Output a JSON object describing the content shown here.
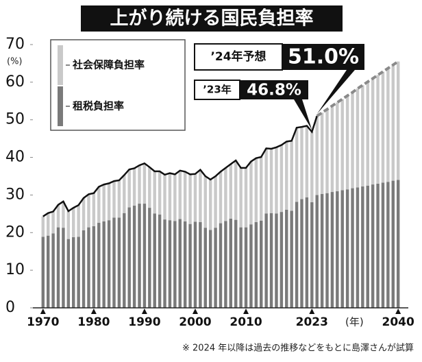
{
  "chart_data": {
    "type": "stacked_bar",
    "title": "上がり続ける国民負担率",
    "ylabel": "(%)",
    "xlabel": "(年)",
    "footnote": "※ 2024 年以降は過去の推移などをもとに島澤さんが試算",
    "x": [
      1970,
      1971,
      1972,
      1973,
      1974,
      1975,
      1976,
      1977,
      1978,
      1979,
      1980,
      1981,
      1982,
      1983,
      1984,
      1985,
      1986,
      1987,
      1988,
      1989,
      1990,
      1991,
      1992,
      1993,
      1994,
      1995,
      1996,
      1997,
      1998,
      1999,
      2000,
      2001,
      2002,
      2003,
      2004,
      2005,
      2006,
      2007,
      2008,
      2009,
      2010,
      2011,
      2012,
      2013,
      2014,
      2015,
      2016,
      2017,
      2018,
      2019,
      2020,
      2021,
      2022,
      2023,
      2024,
      2025,
      2026,
      2027,
      2028,
      2029,
      2030,
      2031,
      2032,
      2033,
      2034,
      2035,
      2036,
      2037,
      2038,
      2039,
      2040
    ],
    "series": [
      {
        "name": "租税負担率",
        "color": "#7a7a7a",
        "values": [
          18.9,
          19.2,
          19.8,
          21.4,
          21.3,
          18.3,
          18.8,
          18.9,
          20.6,
          21.4,
          21.7,
          22.6,
          23.0,
          23.3,
          24.0,
          24.0,
          25.2,
          26.7,
          27.2,
          27.7,
          27.7,
          26.6,
          25.1,
          24.8,
          23.5,
          23.3,
          23.1,
          23.6,
          23.0,
          22.3,
          22.9,
          22.8,
          21.3,
          20.7,
          21.3,
          22.5,
          23.1,
          23.7,
          23.4,
          21.4,
          21.4,
          22.2,
          22.8,
          23.2,
          25.1,
          25.2,
          25.1,
          25.5,
          26.1,
          25.8,
          28.2,
          28.9,
          29.4,
          28.1,
          30.0,
          30.3,
          30.5,
          30.8,
          31.0,
          31.3,
          31.5,
          31.8,
          32.0,
          32.3,
          32.5,
          32.8,
          33.0,
          33.3,
          33.5,
          33.8,
          34.0
        ]
      },
      {
        "name": "社会保障負担率",
        "color": "#c9c9c9",
        "values": [
          5.4,
          6.0,
          5.8,
          6.0,
          7.0,
          7.4,
          7.8,
          8.4,
          8.6,
          8.8,
          8.8,
          9.6,
          9.8,
          9.8,
          9.7,
          9.9,
          10.1,
          10.1,
          9.9,
          10.2,
          10.7,
          10.8,
          11.2,
          11.5,
          11.9,
          12.5,
          12.4,
          12.9,
          13.2,
          13.2,
          12.7,
          13.9,
          13.7,
          13.4,
          13.7,
          13.7,
          14.1,
          14.5,
          15.8,
          15.8,
          15.8,
          16.7,
          17.0,
          16.9,
          17.3,
          17.1,
          17.6,
          17.8,
          18.1,
          18.6,
          19.7,
          19.2,
          19.0,
          18.7,
          21.0,
          21.6,
          22.3,
          22.9,
          23.6,
          24.2,
          24.9,
          25.5,
          26.3,
          26.9,
          27.6,
          28.2,
          28.9,
          29.5,
          30.2,
          30.8,
          31.5
        ]
      }
    ],
    "lines": [
      {
        "color": "#111111",
        "dashed": false,
        "values": [
          24.3,
          25.2,
          25.6,
          27.4,
          28.3,
          25.7,
          26.6,
          27.3,
          29.2,
          30.2,
          30.5,
          32.2,
          32.8,
          33.1,
          33.7,
          33.9,
          35.3,
          36.8,
          37.1,
          37.9,
          38.4,
          37.4,
          36.3,
          36.3,
          35.4,
          35.8,
          35.5,
          36.5,
          36.2,
          35.5,
          35.6,
          36.7,
          35.0,
          34.1,
          35.0,
          36.2,
          37.2,
          38.2,
          39.2,
          37.2,
          37.2,
          38.9,
          39.8,
          40.1,
          42.4,
          42.3,
          42.7,
          43.3,
          44.2,
          44.4,
          47.9,
          48.1,
          48.4,
          46.8,
          51.0,
          null,
          null,
          null,
          null,
          null,
          null,
          null,
          null,
          null,
          null,
          null,
          null,
          null,
          null,
          null,
          null
        ]
      },
      {
        "color": "#8a8a8a",
        "dashed": true,
        "values": [
          null,
          null,
          null,
          null,
          null,
          null,
          null,
          null,
          null,
          null,
          null,
          null,
          null,
          null,
          null,
          null,
          null,
          null,
          null,
          null,
          null,
          null,
          null,
          null,
          null,
          null,
          null,
          null,
          null,
          null,
          null,
          null,
          null,
          null,
          null,
          null,
          null,
          null,
          null,
          null,
          null,
          null,
          null,
          null,
          null,
          null,
          null,
          null,
          null,
          null,
          null,
          null,
          null,
          null,
          51.0,
          51.9,
          52.8,
          53.7,
          54.6,
          55.5,
          56.4,
          57.3,
          58.3,
          59.2,
          60.1,
          61.0,
          61.9,
          62.8,
          63.7,
          64.6,
          65.5
        ]
      }
    ],
    "annotations": [
      {
        "label": "’24年予想",
        "value": 51.0,
        "value_label": "51.0%",
        "x": 2024
      },
      {
        "label": "’23年",
        "value": 46.8,
        "value_label": "46.8%",
        "x": 2023
      }
    ],
    "xlim": [
      1968,
      2042
    ],
    "xticks": [
      1970,
      1980,
      1990,
      2000,
      2010,
      2023,
      2040
    ],
    "ylim": [
      0,
      70
    ],
    "yticks": [
      0,
      10,
      20,
      30,
      40,
      50,
      60,
      70
    ]
  }
}
